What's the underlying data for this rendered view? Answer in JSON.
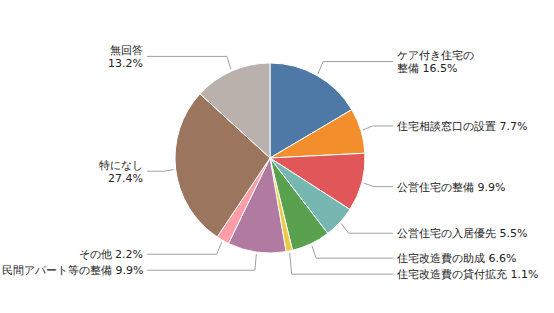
{
  "chart_data": {
    "type": "pie",
    "values": [
      16.5,
      7.7,
      9.9,
      5.5,
      6.6,
      1.1,
      9.9,
      2.2,
      27.4,
      13.2
    ],
    "value_labels": [
      "ケア付き住宅の\n整備 16.5%",
      "住宅相談窓口の設置 7.7%",
      "公営住宅の整備 9.9%",
      "公営住宅の入居優先 5.5%",
      "住宅改造費の助成 6.6%",
      "住宅改造費の貸付拡充 1.1%",
      "民間アパート等の整備 9.9%",
      "その他 2.2%",
      "特になし\n27.4%",
      "無回答\n13.2%"
    ],
    "data_labels": true
  }
}
